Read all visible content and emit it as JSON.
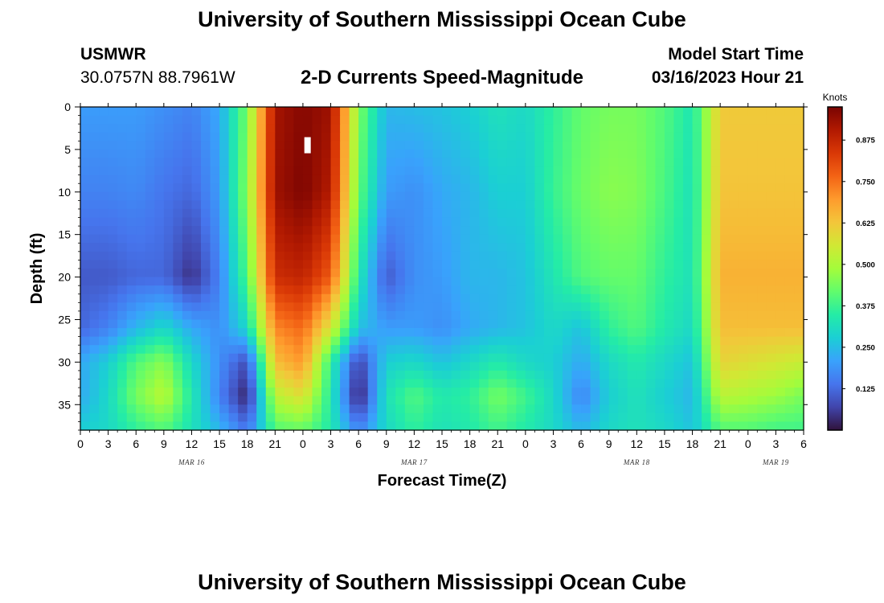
{
  "header": {
    "title": "University of Southern Mississippi Ocean Cube",
    "station_id": "USMWR",
    "station_coords": "30.0757N  88.7961W",
    "subtitle": "2-D Currents Speed-Magnitude",
    "model_label": "Model Start Time",
    "model_time": "03/16/2023 Hour 21"
  },
  "footer": {
    "title": "University of Southern Mississippi Ocean Cube"
  },
  "chart_data": {
    "type": "heatmap",
    "xlabel": "Forecast Time(Z)",
    "ylabel": "Depth (ft)",
    "x_unit": "hours",
    "x_range_hours": [
      0,
      78
    ],
    "x_tick_labels": [
      "0",
      "3",
      "6",
      "9",
      "12",
      "15",
      "18",
      "21",
      "0",
      "3",
      "6",
      "9",
      "12",
      "15",
      "18",
      "21",
      "0",
      "3",
      "6",
      "9",
      "12",
      "15",
      "18",
      "21",
      "0",
      "3",
      "6"
    ],
    "date_labels": [
      {
        "hour": 12,
        "text": "MAR 16"
      },
      {
        "hour": 36,
        "text": "MAR 17"
      },
      {
        "hour": 60,
        "text": "MAR 18"
      },
      {
        "hour": 75,
        "text": "MAR 19"
      }
    ],
    "y_range": [
      0,
      38
    ],
    "y_ticks": [
      0,
      5,
      10,
      15,
      20,
      25,
      30,
      35
    ],
    "colorbar": {
      "unit": "Knots",
      "range": [
        0,
        0.975
      ],
      "ticks": [
        "0.125",
        "0.250",
        "0.375",
        "0.500",
        "0.625",
        "0.750",
        "0.875"
      ],
      "colors": [
        "#30123b",
        "#4145ab",
        "#4675ed",
        "#39a2fc",
        "#1bcfd4",
        "#24eca6",
        "#61fc6c",
        "#a4fc3b",
        "#d1e834",
        "#f3c63a",
        "#fe9b2d",
        "#f36315",
        "#d93806",
        "#b11901",
        "#7a0402"
      ]
    },
    "field_description": "speed magnitude (knots) as a function of forecast hour and depth",
    "time_columns_hours": [
      0,
      3,
      6,
      9,
      12,
      15,
      18,
      21,
      24,
      27,
      30,
      33,
      36,
      39,
      42,
      45,
      48,
      51,
      54,
      57,
      60,
      63,
      66,
      69,
      72,
      75,
      78
    ],
    "depth_rows_ft": [
      0,
      10,
      20,
      26,
      30,
      34,
      38
    ],
    "values": [
      [
        0.2,
        0.2,
        0.2,
        0.18,
        0.16,
        0.22,
        0.44,
        0.92,
        0.96,
        0.93,
        0.45,
        0.24,
        0.25,
        0.26,
        0.28,
        0.32,
        0.3,
        0.36,
        0.42,
        0.44,
        0.44,
        0.4,
        0.33,
        0.62,
        0.62,
        0.62,
        0.62
      ],
      [
        0.16,
        0.16,
        0.17,
        0.14,
        0.12,
        0.2,
        0.46,
        0.93,
        0.97,
        0.9,
        0.42,
        0.2,
        0.18,
        0.22,
        0.24,
        0.28,
        0.28,
        0.37,
        0.43,
        0.46,
        0.45,
        0.39,
        0.32,
        0.63,
        0.63,
        0.63,
        0.63
      ],
      [
        0.1,
        0.1,
        0.12,
        0.12,
        0.04,
        0.16,
        0.4,
        0.86,
        0.88,
        0.78,
        0.34,
        0.1,
        0.18,
        0.2,
        0.24,
        0.24,
        0.26,
        0.33,
        0.4,
        0.42,
        0.42,
        0.36,
        0.32,
        0.66,
        0.66,
        0.66,
        0.66
      ],
      [
        0.12,
        0.16,
        0.24,
        0.3,
        0.22,
        0.18,
        0.3,
        0.72,
        0.76,
        0.56,
        0.26,
        0.2,
        0.2,
        0.18,
        0.22,
        0.24,
        0.26,
        0.3,
        0.26,
        0.36,
        0.4,
        0.34,
        0.3,
        0.64,
        0.64,
        0.64,
        0.64
      ],
      [
        0.22,
        0.28,
        0.4,
        0.46,
        0.3,
        0.18,
        0.08,
        0.64,
        0.7,
        0.36,
        0.06,
        0.28,
        0.3,
        0.26,
        0.3,
        0.34,
        0.3,
        0.28,
        0.22,
        0.3,
        0.34,
        0.3,
        0.26,
        0.6,
        0.58,
        0.56,
        0.54
      ],
      [
        0.22,
        0.3,
        0.44,
        0.52,
        0.34,
        0.16,
        0.02,
        0.52,
        0.58,
        0.34,
        0.01,
        0.32,
        0.4,
        0.34,
        0.36,
        0.44,
        0.38,
        0.3,
        0.16,
        0.28,
        0.32,
        0.28,
        0.24,
        0.52,
        0.5,
        0.48,
        0.44
      ],
      [
        0.28,
        0.3,
        0.36,
        0.4,
        0.32,
        0.24,
        0.14,
        0.4,
        0.42,
        0.34,
        0.16,
        0.3,
        0.36,
        0.32,
        0.34,
        0.38,
        0.34,
        0.3,
        0.24,
        0.3,
        0.32,
        0.3,
        0.26,
        0.4,
        0.4,
        0.38,
        0.38
      ]
    ],
    "annotation": {
      "hour": 24.5,
      "depth_ft": 4.5,
      "text": "white marker"
    }
  }
}
